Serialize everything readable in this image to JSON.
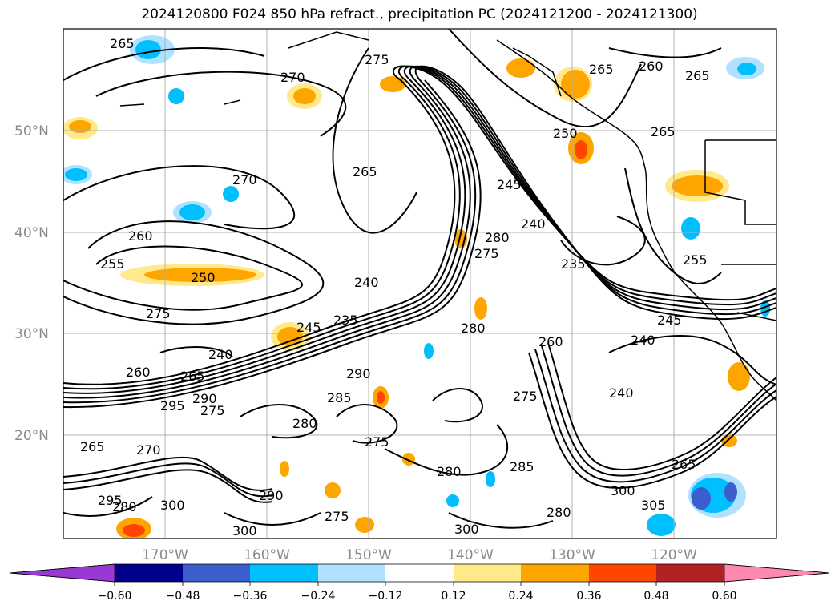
{
  "title": "2024120800 F024 850 hPa refract., precipitation PC (2024121200 - 2024121300)",
  "lat_labels": [
    "50°N",
    "40°N",
    "30°N",
    "20°N"
  ],
  "lon_labels": [
    "170°W",
    "160°W",
    "150°W",
    "140°W",
    "130°W",
    "120°W"
  ],
  "colorbar": {
    "colors": [
      "#9a38d6",
      "#00008c",
      "#3a5fcd",
      "#00bfff",
      "#b0e2ff",
      "#ffffff",
      "#ffe98a",
      "#ffa500",
      "#ff4500",
      "#b22222",
      "#ff88b0"
    ],
    "tick_labels": [
      "−0.60",
      "−0.48",
      "−0.36",
      "−0.24",
      "−0.12",
      "0.12",
      "0.24",
      "0.36",
      "0.48",
      "0.60"
    ]
  },
  "contour_labels": [
    {
      "text": "265"
    },
    {
      "text": "270"
    },
    {
      "text": "275"
    },
    {
      "text": "265"
    },
    {
      "text": "260"
    },
    {
      "text": "265"
    },
    {
      "text": "265"
    },
    {
      "text": "250"
    },
    {
      "text": "270"
    },
    {
      "text": "265"
    },
    {
      "text": "260"
    },
    {
      "text": "255"
    },
    {
      "text": "250"
    },
    {
      "text": "275"
    },
    {
      "text": "240"
    },
    {
      "text": "235"
    },
    {
      "text": "245"
    },
    {
      "text": "240"
    },
    {
      "text": "265"
    },
    {
      "text": "295"
    },
    {
      "text": "290"
    },
    {
      "text": "275"
    },
    {
      "text": "285"
    },
    {
      "text": "290"
    },
    {
      "text": "280"
    },
    {
      "text": "275"
    },
    {
      "text": "280"
    },
    {
      "text": "275"
    },
    {
      "text": "240"
    },
    {
      "text": "235"
    },
    {
      "text": "260"
    },
    {
      "text": "275"
    },
    {
      "text": "280"
    },
    {
      "text": "255"
    },
    {
      "text": "245"
    },
    {
      "text": "240"
    },
    {
      "text": "240"
    },
    {
      "text": "265"
    },
    {
      "text": "300"
    },
    {
      "text": "305"
    },
    {
      "text": "285"
    },
    {
      "text": "280"
    },
    {
      "text": "300"
    },
    {
      "text": "270"
    },
    {
      "text": "265"
    },
    {
      "text": "280"
    },
    {
      "text": "295"
    },
    {
      "text": "290"
    },
    {
      "text": "275"
    },
    {
      "text": "300"
    },
    {
      "text": "300"
    },
    {
      "text": "280"
    },
    {
      "text": "260"
    },
    {
      "text": "245"
    }
  ]
}
